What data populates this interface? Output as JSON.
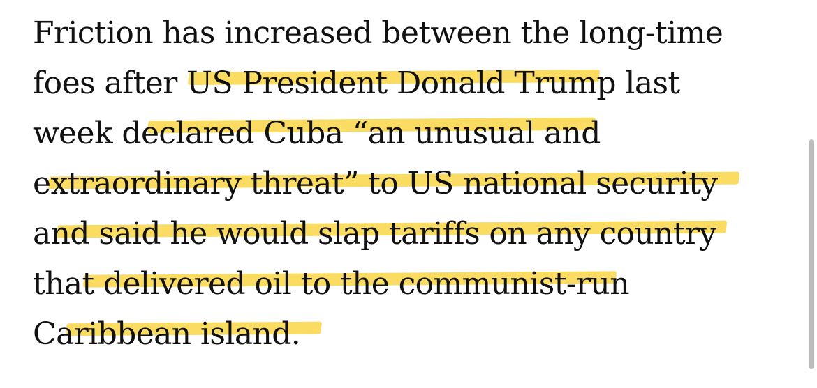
{
  "article": {
    "highlight_color": "#f9d648",
    "text_color": "#111111",
    "lines": [
      "Friction has increased between the long-time",
      "foes after US President Donald Trump last",
      "week declared Cuba “an unusual and",
      "extraordinary threat” to US national security",
      "and said he would slap tariffs on any country",
      "that delivered oil to the communist-run",
      "Caribbean island."
    ]
  }
}
